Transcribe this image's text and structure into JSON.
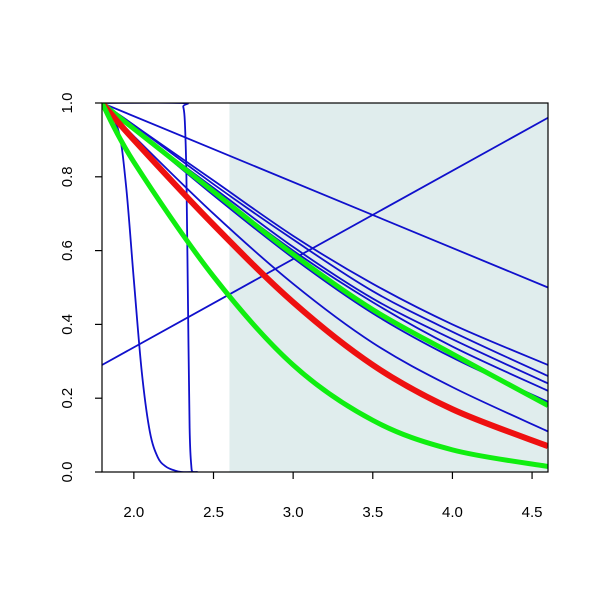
{
  "chart_data": {
    "type": "line",
    "title": "",
    "xlabel": "",
    "ylabel": "",
    "xlim": [
      1.8,
      4.6
    ],
    "ylim": [
      0.0,
      1.0
    ],
    "x_ticks": [
      "2.0",
      "2.5",
      "3.0",
      "3.5",
      "4.0",
      "4.5"
    ],
    "y_ticks": [
      "0.0",
      "0.2",
      "0.4",
      "0.6",
      "0.8",
      "1.0"
    ],
    "grid": false,
    "shaded_region": {
      "x_from": 2.6,
      "x_to": 4.6,
      "color": "#e0eded"
    },
    "series": [
      {
        "color": "#1010cc",
        "width": 1.8,
        "x": [
          1.8,
          4.6
        ],
        "y": [
          0.29,
          0.96
        ]
      },
      {
        "color": "#1010cc",
        "width": 1.8,
        "x": [
          1.8,
          4.6
        ],
        "y": [
          1.0,
          0.5
        ]
      },
      {
        "color": "#1010cc",
        "width": 1.8,
        "x": [
          1.8,
          1.9,
          1.95,
          2.0,
          2.05,
          2.1,
          2.15,
          2.2,
          2.25,
          2.3,
          2.4
        ],
        "y": [
          1.0,
          0.93,
          0.78,
          0.52,
          0.27,
          0.11,
          0.04,
          0.015,
          0.005,
          0.0,
          0.0
        ]
      },
      {
        "color": "#1010cc",
        "width": 1.8,
        "x": [
          1.8,
          2.3,
          2.31,
          2.32,
          2.33,
          2.34,
          2.35,
          2.36,
          2.37,
          2.4
        ],
        "y": [
          1.0,
          1.0,
          0.99,
          0.95,
          0.8,
          0.45,
          0.12,
          0.02,
          0.0,
          0.0
        ]
      },
      {
        "color": "#1010cc",
        "width": 1.8,
        "x": [
          1.8,
          2.0,
          2.5,
          3.0,
          3.5,
          4.0,
          4.6
        ],
        "y": [
          1.0,
          0.94,
          0.79,
          0.64,
          0.51,
          0.4,
          0.29
        ]
      },
      {
        "color": "#1010cc",
        "width": 1.8,
        "x": [
          1.8,
          2.0,
          2.5,
          3.0,
          3.5,
          4.0,
          4.6
        ],
        "y": [
          1.0,
          0.94,
          0.78,
          0.63,
          0.49,
          0.38,
          0.26
        ]
      },
      {
        "color": "#1010cc",
        "width": 1.8,
        "x": [
          1.8,
          2.0,
          2.5,
          3.0,
          3.5,
          4.0,
          4.6
        ],
        "y": [
          1.0,
          0.93,
          0.77,
          0.61,
          0.47,
          0.36,
          0.24
        ]
      },
      {
        "color": "#1010cc",
        "width": 1.8,
        "x": [
          1.8,
          2.0,
          2.5,
          3.0,
          3.5,
          4.0,
          4.6
        ],
        "y": [
          1.0,
          0.93,
          0.76,
          0.6,
          0.46,
          0.34,
          0.22
        ]
      },
      {
        "color": "#1010cc",
        "width": 1.8,
        "x": [
          1.8,
          2.0,
          2.5,
          3.0,
          3.5,
          4.0,
          4.6
        ],
        "y": [
          1.0,
          0.93,
          0.75,
          0.58,
          0.43,
          0.31,
          0.19
        ]
      },
      {
        "color": "#1010cc",
        "width": 1.8,
        "x": [
          1.8,
          2.0,
          2.5,
          3.0,
          3.5,
          4.0,
          4.6
        ],
        "y": [
          1.0,
          0.91,
          0.7,
          0.51,
          0.35,
          0.23,
          0.11
        ]
      },
      {
        "color": "#10ee10",
        "width": 5,
        "x": [
          1.8,
          2.0,
          2.5,
          3.0,
          3.5,
          4.0,
          4.6
        ],
        "y": [
          1.0,
          0.93,
          0.76,
          0.59,
          0.44,
          0.32,
          0.18
        ]
      },
      {
        "color": "#ee1010",
        "width": 6,
        "x": [
          1.8,
          2.0,
          2.5,
          3.0,
          3.5,
          4.0,
          4.6
        ],
        "y": [
          1.0,
          0.9,
          0.67,
          0.46,
          0.29,
          0.17,
          0.07
        ]
      },
      {
        "color": "#10ee10",
        "width": 5,
        "x": [
          1.8,
          2.0,
          2.5,
          3.0,
          3.5,
          4.0,
          4.6
        ],
        "y": [
          1.0,
          0.84,
          0.53,
          0.29,
          0.14,
          0.06,
          0.015
        ]
      }
    ]
  }
}
